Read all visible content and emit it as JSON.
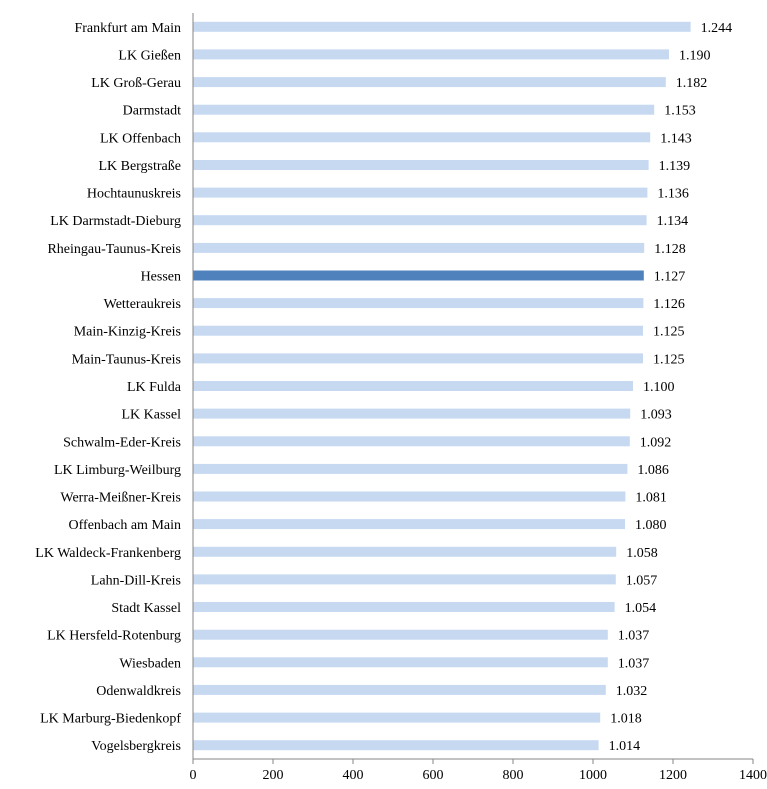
{
  "chart_data": {
    "type": "bar",
    "orientation": "horizontal",
    "title": "",
    "xlabel": "",
    "ylabel": "",
    "xlim": [
      0,
      1400
    ],
    "x_ticks": [
      0,
      200,
      400,
      600,
      800,
      1000,
      1200,
      1400
    ],
    "x_tick_labels": [
      "0",
      "200",
      "400",
      "600",
      "800",
      "1000",
      "1200",
      "1400"
    ],
    "grid": false,
    "legend": "none",
    "bar_color": "#c6d9f1",
    "highlight_color": "#4f81bd",
    "highlight_category": "Hessen",
    "categories": [
      "Frankfurt am Main",
      "LK Gießen",
      "LK Groß-Gerau",
      "Darmstadt",
      "LK Offenbach",
      "LK Bergstraße",
      "Hochtaunuskreis",
      "LK Darmstadt-Dieburg",
      "Rheingau-Taunus-Kreis",
      "Hessen",
      "Wetteraukreis",
      "Main-Kinzig-Kreis",
      "Main-Taunus-Kreis",
      "LK Fulda",
      "LK Kassel",
      "Schwalm-Eder-Kreis",
      "LK Limburg-Weilburg",
      "Werra-Meißner-Kreis",
      "Offenbach am Main",
      "LK Waldeck-Frankenberg",
      "Lahn-Dill-Kreis",
      "Stadt Kassel",
      "LK Hersfeld-Rotenburg",
      "Wiesbaden",
      "Odenwaldkreis",
      "LK Marburg-Biedenkopf",
      "Vogelsbergkreis"
    ],
    "values": [
      1244,
      1190,
      1182,
      1153,
      1143,
      1139,
      1136,
      1134,
      1128,
      1127,
      1126,
      1125,
      1125,
      1100,
      1093,
      1092,
      1086,
      1081,
      1080,
      1058,
      1057,
      1054,
      1037,
      1037,
      1032,
      1018,
      1014
    ],
    "value_labels": [
      "1.244",
      "1.190",
      "1.182",
      "1.153",
      "1.143",
      "1.139",
      "1.136",
      "1.134",
      "1.128",
      "1.127",
      "1.126",
      "1.125",
      "1.125",
      "1.100",
      "1.093",
      "1.092",
      "1.086",
      "1.081",
      "1.080",
      "1.058",
      "1.057",
      "1.054",
      "1.037",
      "1.037",
      "1.032",
      "1.018",
      "1.014"
    ]
  }
}
